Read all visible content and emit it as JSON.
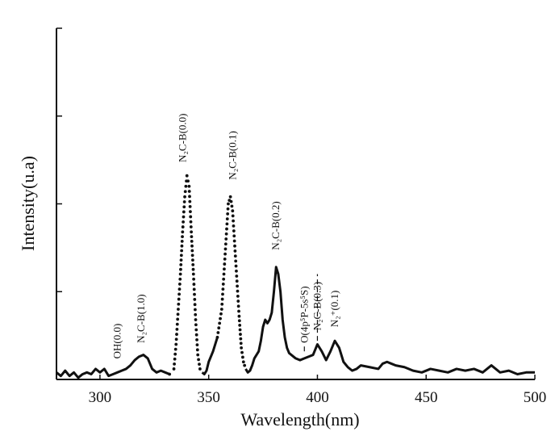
{
  "chart_data": {
    "type": "line",
    "title": "",
    "xlabel": "Wavelength(nm)",
    "ylabel": "Intensity(u.a)",
    "xlim": [
      280,
      500
    ],
    "ylim": [
      0,
      1
    ],
    "x_ticks": [
      "300",
      "350",
      "400",
      "450",
      "500"
    ],
    "y_tick_count": 4,
    "y_tick_values": [
      0.25,
      0.5,
      0.75,
      1.0
    ],
    "grid": false,
    "series": [
      {
        "x": [
          280,
          282,
          284,
          286,
          288,
          290,
          292,
          294,
          296,
          298,
          300,
          302,
          304,
          306,
          308,
          310,
          312,
          314,
          316,
          318,
          320,
          322,
          324,
          326,
          328,
          330,
          332,
          334,
          335,
          336,
          337,
          338,
          339,
          340,
          341,
          342,
          343,
          344,
          345,
          346,
          347,
          348,
          349,
          350,
          352,
          354,
          356,
          357,
          358,
          359,
          360,
          361,
          362,
          363,
          364,
          365,
          366,
          367,
          368,
          369,
          370,
          371,
          372,
          373,
          374,
          375,
          376,
          377,
          378,
          379,
          380,
          381,
          382,
          383,
          384,
          385,
          386,
          387,
          388,
          390,
          392,
          394,
          396,
          398,
          400,
          402,
          404,
          406,
          408,
          410,
          412,
          414,
          416,
          418,
          420,
          424,
          428,
          430,
          432,
          434,
          436,
          440,
          444,
          448,
          452,
          456,
          460,
          464,
          468,
          472,
          476,
          480,
          484,
          488,
          492,
          496,
          500
        ],
        "y": [
          0.02,
          0.01,
          0.025,
          0.01,
          0.02,
          0.005,
          0.015,
          0.02,
          0.015,
          0.03,
          0.02,
          0.03,
          0.01,
          0.015,
          0.02,
          0.025,
          0.03,
          0.04,
          0.055,
          0.065,
          0.07,
          0.06,
          0.03,
          0.02,
          0.025,
          0.02,
          0.015,
          0.03,
          0.1,
          0.2,
          0.3,
          0.42,
          0.52,
          0.58,
          0.55,
          0.42,
          0.3,
          0.17,
          0.07,
          0.03,
          0.02,
          0.015,
          0.025,
          0.05,
          0.08,
          0.12,
          0.2,
          0.3,
          0.4,
          0.5,
          0.52,
          0.48,
          0.38,
          0.28,
          0.18,
          0.09,
          0.05,
          0.03,
          0.02,
          0.025,
          0.04,
          0.06,
          0.07,
          0.08,
          0.11,
          0.15,
          0.17,
          0.16,
          0.17,
          0.19,
          0.25,
          0.32,
          0.3,
          0.25,
          0.17,
          0.12,
          0.09,
          0.075,
          0.07,
          0.06,
          0.055,
          0.06,
          0.065,
          0.07,
          0.1,
          0.08,
          0.055,
          0.08,
          0.11,
          0.09,
          0.05,
          0.035,
          0.025,
          0.03,
          0.04,
          0.035,
          0.03,
          0.045,
          0.05,
          0.045,
          0.04,
          0.035,
          0.025,
          0.02,
          0.03,
          0.025,
          0.02,
          0.03,
          0.025,
          0.03,
          0.02,
          0.04,
          0.02,
          0.025,
          0.015,
          0.02,
          0.02
        ],
        "style": "solid line with dotted segments around the strongest peaks"
      }
    ],
    "annotations": [
      {
        "text": "OH(0.0)",
        "x": 308,
        "y": 0.045
      },
      {
        "text": "N₂C-B(1.0)",
        "x": 319,
        "y": 0.09
      },
      {
        "text": "N₂C-B(0.0)",
        "x": 338,
        "y": 0.6
      },
      {
        "text": "N₂C-B(0.1)",
        "x": 361,
        "y": 0.55
      },
      {
        "text": "N₂C-B(0.2)",
        "x": 381,
        "y": 0.35
      },
      {
        "text": "O(4p⁵P-5s⁵S)",
        "x": 394,
        "y": 0.09
      },
      {
        "text": "N₂C-B(0.3)",
        "x": 400,
        "y": 0.13
      },
      {
        "text": "N₂⁺(0.1)",
        "x": 408,
        "y": 0.135
      }
    ]
  }
}
